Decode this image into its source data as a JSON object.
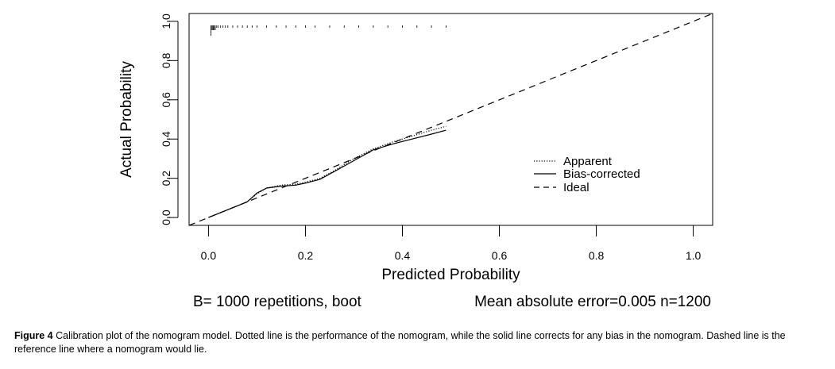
{
  "chart_data": {
    "type": "line",
    "xlabel": "Predicted Probability",
    "ylabel": "Actual Probability",
    "xlim": [
      -0.04,
      1.04
    ],
    "ylim": [
      -0.04,
      1.04
    ],
    "x_ticks": [
      "0.0",
      "0.2",
      "0.4",
      "0.6",
      "0.8",
      "1.0"
    ],
    "y_ticks": [
      "0.0",
      "0.2",
      "0.4",
      "0.6",
      "0.8",
      "1.0"
    ],
    "grid": false,
    "legend_position": "right",
    "series": [
      {
        "name": "Apparent",
        "style": "dotted",
        "x": [
          0.0,
          0.03,
          0.05,
          0.08,
          0.1,
          0.12,
          0.15,
          0.18,
          0.2,
          0.23,
          0.26,
          0.3,
          0.34,
          0.38,
          0.42,
          0.46,
          0.49
        ],
        "y": [
          0.0,
          0.03,
          0.05,
          0.08,
          0.12,
          0.15,
          0.165,
          0.17,
          0.18,
          0.2,
          0.24,
          0.3,
          0.35,
          0.385,
          0.415,
          0.445,
          0.465
        ]
      },
      {
        "name": "Bias-corrected",
        "style": "solid",
        "x": [
          0.0,
          0.03,
          0.05,
          0.08,
          0.1,
          0.12,
          0.15,
          0.18,
          0.2,
          0.23,
          0.26,
          0.3,
          0.34,
          0.38,
          0.42,
          0.46,
          0.49
        ],
        "y": [
          0.0,
          0.03,
          0.05,
          0.08,
          0.125,
          0.15,
          0.16,
          0.165,
          0.175,
          0.195,
          0.235,
          0.29,
          0.345,
          0.375,
          0.4,
          0.425,
          0.445
        ]
      },
      {
        "name": "Ideal",
        "style": "dashed",
        "x": [
          -0.04,
          1.04
        ],
        "y": [
          -0.04,
          1.04
        ]
      }
    ],
    "rug_x": [
      0.005,
      0.006,
      0.008,
      0.01,
      0.012,
      0.014,
      0.017,
      0.02,
      0.025,
      0.03,
      0.035,
      0.04,
      0.05,
      0.06,
      0.07,
      0.08,
      0.09,
      0.1,
      0.12,
      0.14,
      0.16,
      0.18,
      0.2,
      0.22,
      0.25,
      0.28,
      0.31,
      0.34,
      0.37,
      0.4,
      0.43,
      0.46,
      0.49
    ],
    "annotations": {
      "left": "B= 1000 repetitions, boot",
      "right": "Mean absolute error=0.005 n=1200"
    }
  },
  "caption": {
    "label": "Figure 4",
    "text": "Calibration plot of the nomogram model. Dotted line is the performance of the nomogram, while the solid line corrects for any bias in the nomogram. Dashed line is the reference line where a nomogram would lie."
  },
  "colors": {
    "ink": "#000000",
    "background": "#ffffff"
  }
}
